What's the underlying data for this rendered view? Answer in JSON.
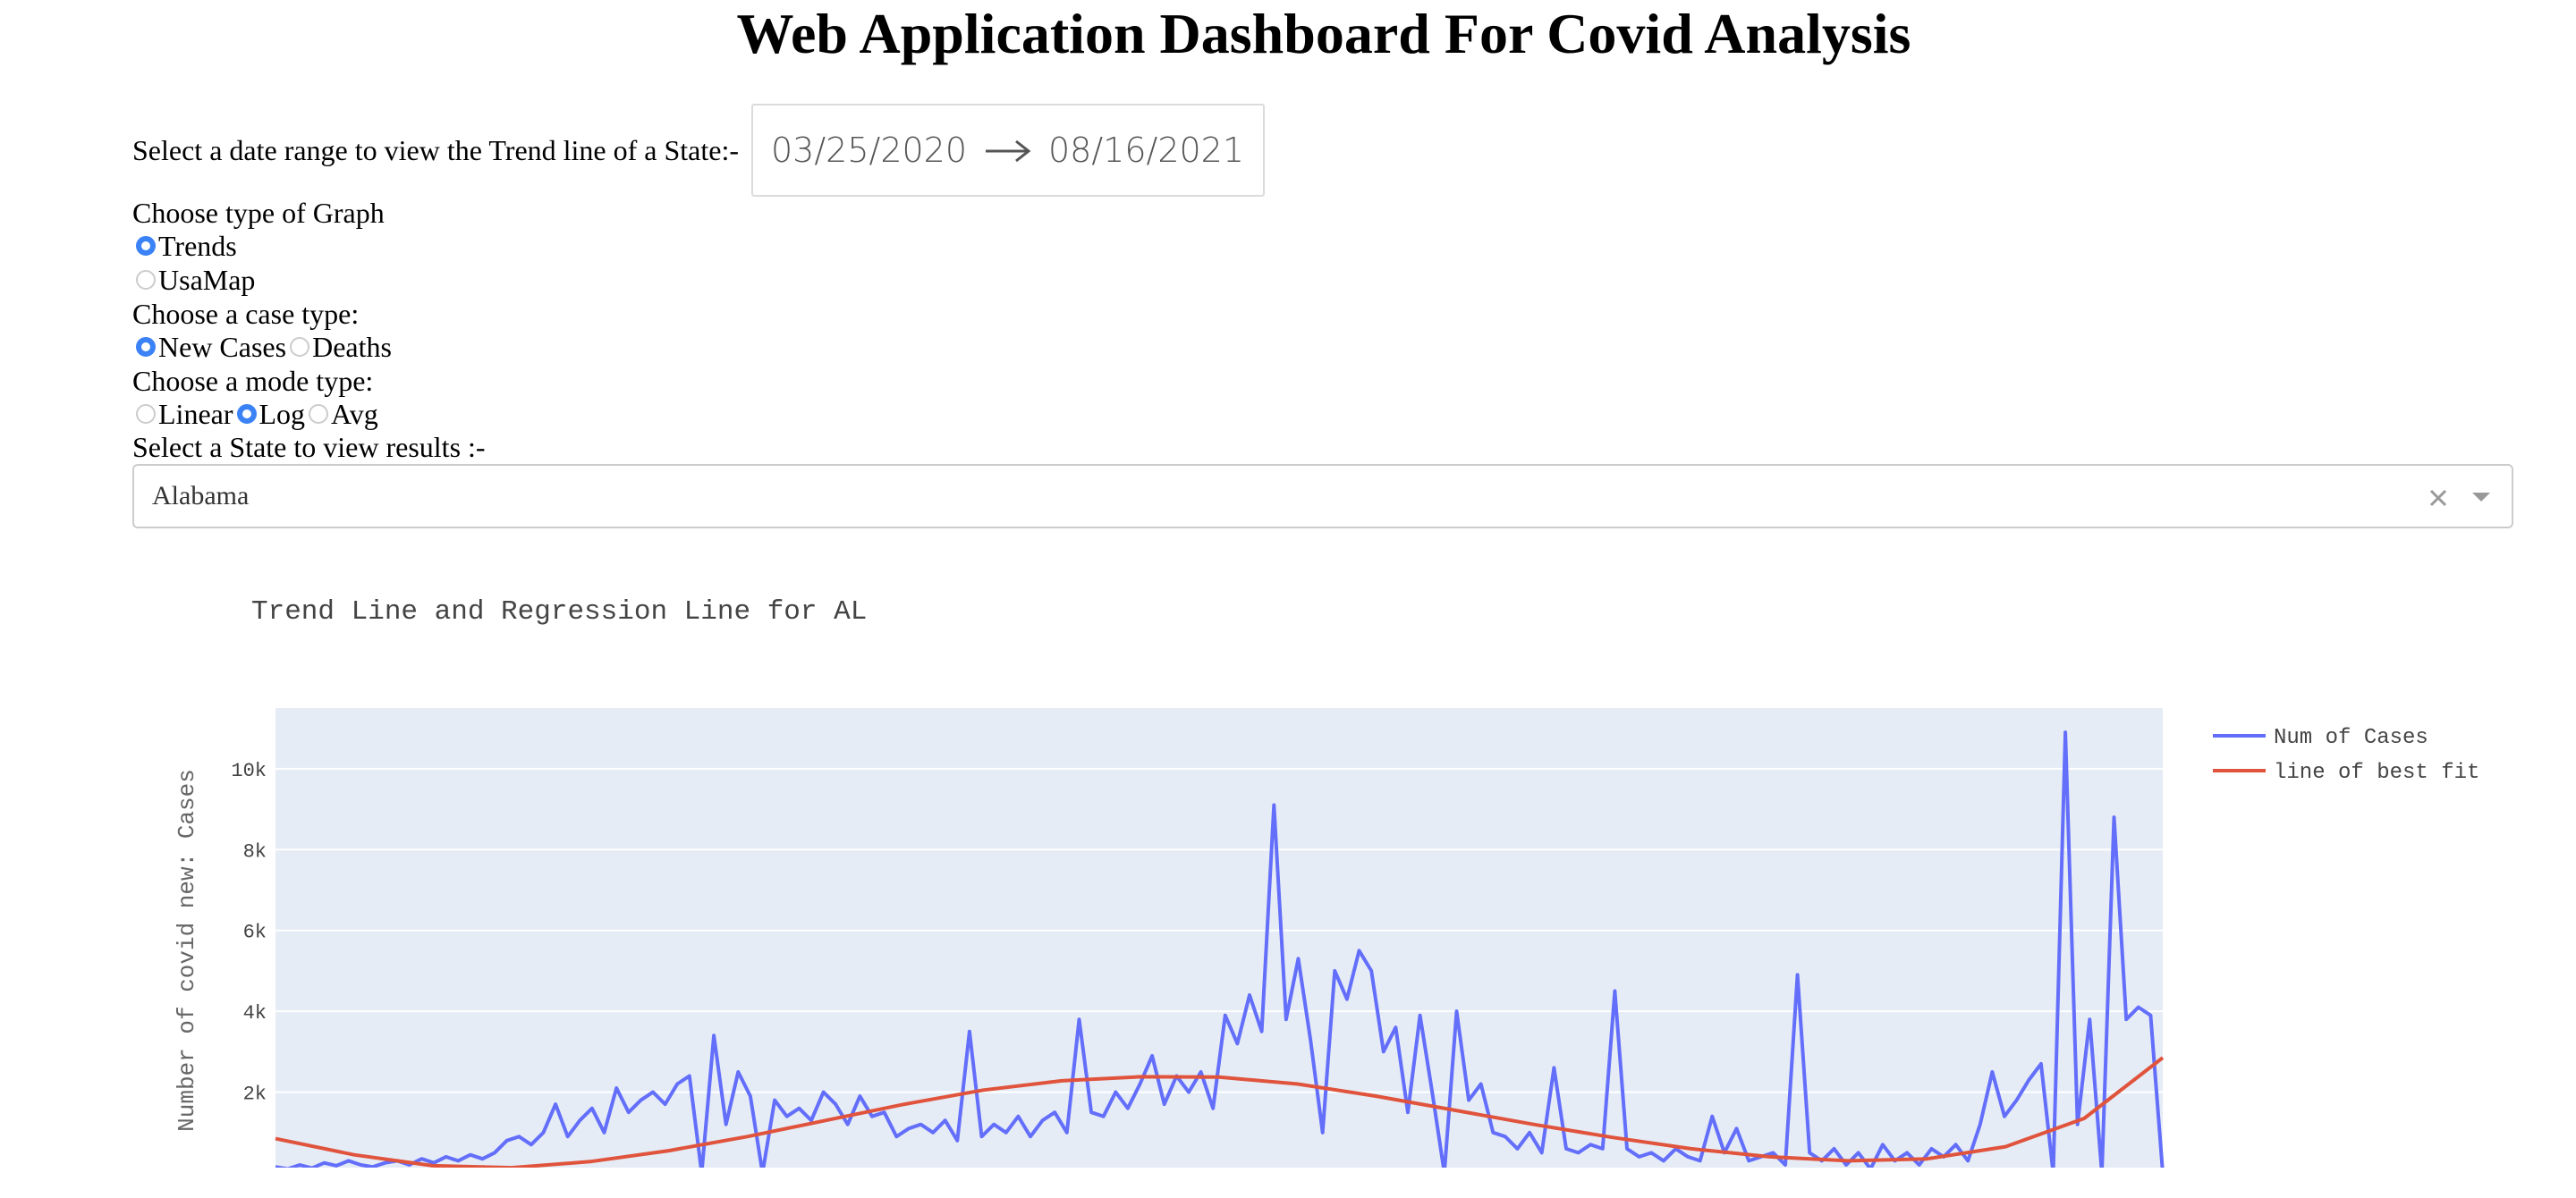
{
  "header": {
    "title": "Web Application Dashboard For Covid Analysis"
  },
  "controls": {
    "date_range": {
      "label": "Select a date range to view the Trend line of a State:-",
      "start": "03/25/2020",
      "end": "08/16/2021"
    },
    "graph_type": {
      "label": "Choose type of Graph",
      "options": [
        "Trends",
        "UsaMap"
      ],
      "selected": 0
    },
    "case_type": {
      "label": "Choose a case type:",
      "options": [
        "New Cases",
        "Deaths"
      ],
      "selected": 0
    },
    "mode_type": {
      "label": "Choose a mode type:",
      "options": [
        "Linear",
        "Log",
        "Avg"
      ],
      "selected": 1
    },
    "state": {
      "label": "Select a State to view results :-",
      "value": "Alabama"
    }
  },
  "chart_data": {
    "type": "line",
    "title": "Trend Line and Regression Line for AL",
    "y_label": "Number of covid new: Cases",
    "ylim": [
      0,
      11500
    ],
    "yticks": [
      {
        "value": 2000,
        "label": "2k"
      },
      {
        "value": 4000,
        "label": "4k"
      },
      {
        "value": 6000,
        "label": "6k"
      },
      {
        "value": 8000,
        "label": "8k"
      },
      {
        "value": 10000,
        "label": "10k"
      }
    ],
    "grid": true,
    "legend": "right",
    "series": [
      {
        "name": "Num of Cases",
        "color": "#636efa",
        "values": [
          150,
          100,
          200,
          120,
          250,
          180,
          300,
          200,
          150,
          250,
          300,
          200,
          350,
          250,
          400,
          300,
          450,
          350,
          500,
          800,
          900,
          700,
          1000,
          1700,
          900,
          1300,
          1600,
          1000,
          2100,
          1500,
          1800,
          2000,
          1700,
          2200,
          2400,
          0,
          3400,
          1200,
          2500,
          1900,
          0,
          1800,
          1400,
          1600,
          1300,
          2000,
          1700,
          1200,
          1900,
          1400,
          1500,
          900,
          1100,
          1200,
          1000,
          1300,
          800,
          3500,
          900,
          1200,
          1000,
          1400,
          900,
          1300,
          1500,
          1000,
          3800,
          1500,
          1400,
          2000,
          1600,
          2200,
          2900,
          1700,
          2400,
          2000,
          2500,
          1600,
          3900,
          3200,
          4400,
          3500,
          9100,
          3800,
          5300,
          3300,
          1000,
          5000,
          4300,
          5500,
          5000,
          3000,
          3600,
          1500,
          3900,
          2000,
          0,
          4000,
          1800,
          2200,
          1000,
          900,
          600,
          1000,
          500,
          2600,
          600,
          500,
          700,
          600,
          4500,
          600,
          400,
          500,
          300,
          600,
          400,
          300,
          1400,
          500,
          1100,
          300,
          400,
          500,
          200,
          4900,
          500,
          300,
          600,
          200,
          500,
          100,
          700,
          300,
          500,
          200,
          600,
          400,
          700,
          300,
          1200,
          2500,
          1400,
          1800,
          2300,
          2700,
          0,
          10900,
          1200,
          3800,
          0,
          8800,
          3800,
          4100,
          3900,
          0
        ]
      },
      {
        "name": "line of best fit",
        "color": "#e0533c",
        "values": [
          850,
          450,
          180,
          130,
          280,
          550,
          900,
          1300,
          1700,
          2050,
          2280,
          2380,
          2370,
          2200,
          1900,
          1550,
          1200,
          880,
          600,
          400,
          300,
          350,
          650,
          1350,
          2850
        ]
      }
    ]
  }
}
